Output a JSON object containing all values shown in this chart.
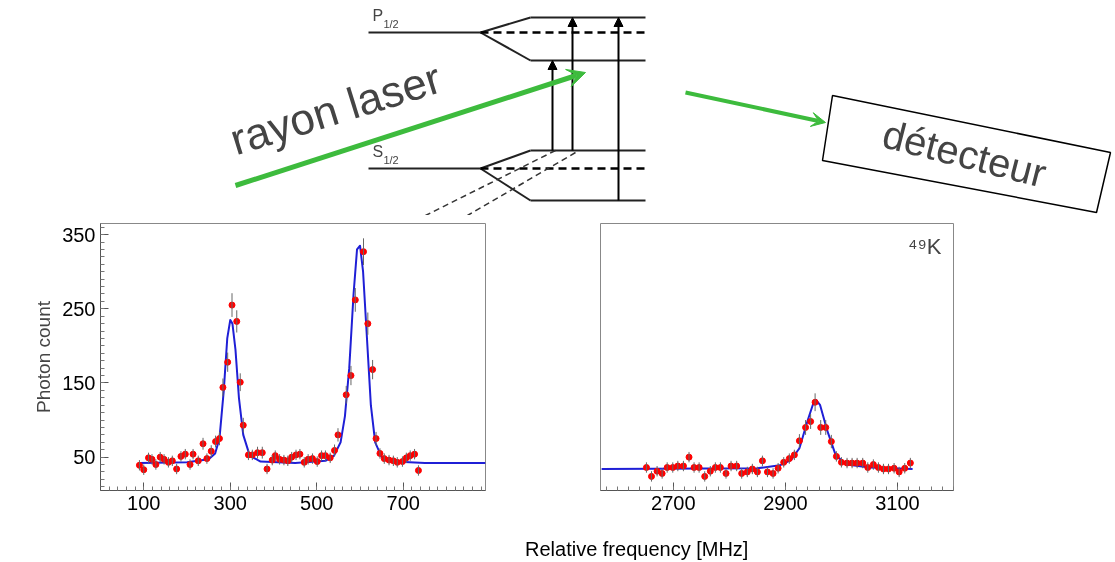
{
  "chart_data": [
    {
      "type": "scatter",
      "xlabel": "Relative frequency [MHz]",
      "ylabel": "Photon count",
      "xlim": [
        0,
        890
      ],
      "xticks": [
        100,
        300,
        500,
        700
      ],
      "ylim": [
        5,
        365
      ],
      "yticks": [
        50,
        150,
        250,
        350
      ],
      "annotations": [
        "rayon laser",
        "détecteur",
        "P$_{1/2}$",
        "S$_{1/2}$"
      ],
      "series": [
        {
          "marker": "circle",
          "color": "#ff0000",
          "x": [
            90,
            100,
            111,
            119,
            128,
            138,
            147,
            157,
            166,
            176,
            186,
            196,
            207,
            214,
            226,
            237,
            246,
            256,
            266,
            275,
            283,
            294,
            304,
            315,
            323,
            330,
            342,
            351,
            363,
            374,
            385,
            397,
            404,
            414,
            424,
            433,
            442,
            452,
            461,
            471,
            480,
            490,
            501,
            511,
            520,
            531,
            541,
            549,
            568,
            579,
            589,
            608,
            618,
            629,
            637,
            646,
            656,
            667,
            677,
            686,
            698,
            707,
            716,
            726,
            735
          ],
          "values": [
            39,
            33,
            49,
            47,
            40,
            50,
            47,
            43,
            45,
            34,
            51,
            54,
            40,
            54,
            45,
            68,
            48,
            58,
            71,
            75,
            144,
            178,
            255,
            233,
            151,
            93,
            53,
            53,
            56,
            56,
            34,
            46,
            52,
            47,
            46,
            45,
            50,
            53,
            54,
            43,
            47,
            48,
            44,
            52,
            52,
            49,
            59,
            80,
            134,
            160,
            262,
            327,
            230,
            168,
            75,
            55,
            48,
            46,
            45,
            43,
            44,
            49,
            52,
            54,
            32
          ],
          "errors": [
            7,
            7,
            7,
            7,
            7,
            7,
            7,
            7,
            7,
            7,
            7,
            7,
            7,
            7,
            7,
            8,
            7,
            8,
            8,
            9,
            12,
            13,
            16,
            15,
            12,
            10,
            7,
            7,
            8,
            8,
            7,
            7,
            7,
            7,
            7,
            7,
            7,
            7,
            7,
            7,
            7,
            7,
            7,
            7,
            7,
            7,
            8,
            9,
            12,
            13,
            16,
            18,
            15,
            13,
            9,
            7,
            7,
            7,
            7,
            7,
            7,
            7,
            7,
            7,
            7
          ]
        },
        {
          "type": "line",
          "color": "#1f1fd6",
          "x": [
            90,
            200,
            250,
            265,
            275,
            285,
            293,
            300,
            305,
            312,
            320,
            330,
            345,
            370,
            450,
            520,
            540,
            555,
            565,
            575,
            585,
            593,
            600,
            607,
            615,
            625,
            635,
            650,
            680,
            750,
            890
          ],
          "values": [
            42,
            43,
            47,
            55,
            75,
            140,
            210,
            235,
            230,
            195,
            130,
            80,
            52,
            44,
            42,
            45,
            52,
            70,
            105,
            170,
            270,
            330,
            335,
            300,
            220,
            120,
            70,
            50,
            44,
            42,
            42
          ]
        }
      ]
    },
    {
      "type": "scatter",
      "xlim": [
        2570,
        3200
      ],
      "xticks": [
        2700,
        2900,
        3100
      ],
      "ylim": [
        5,
        365
      ],
      "yticks": [
        50,
        150,
        250,
        350
      ],
      "tick_labels": "x",
      "annotations": [
        "⁴⁹K"
      ],
      "series": [
        {
          "marker": "circle",
          "color": "#ff0000",
          "x": [
            2652,
            2661,
            2671,
            2680,
            2689,
            2699,
            2708,
            2718,
            2728,
            2737,
            2746,
            2756,
            2766,
            2775,
            2784,
            2794,
            2803,
            2813,
            2822,
            2832,
            2841,
            2850,
            2859,
            2868,
            2878,
            2887,
            2897,
            2907,
            2916,
            2925,
            2936,
            2945,
            2953,
            2963,
            2972,
            2982,
            2991,
            3000,
            3010,
            3019,
            3028,
            3038,
            3047,
            3057,
            3066,
            3075,
            3084,
            3094,
            3103,
            3113,
            3123
          ],
          "values": [
            36,
            24,
            31,
            28,
            36,
            36,
            38,
            38,
            50,
            36,
            36,
            24,
            31,
            36,
            36,
            28,
            38,
            38,
            28,
            30,
            34,
            30,
            45,
            30,
            28,
            35,
            43,
            48,
            53,
            72,
            90,
            98,
            124,
            90,
            90,
            71,
            51,
            43,
            42,
            42,
            42,
            42,
            36,
            40,
            36,
            34,
            34,
            35,
            30,
            35,
            42
          ],
          "errors": [
            7,
            7,
            7,
            7,
            7,
            7,
            7,
            7,
            7,
            7,
            7,
            7,
            7,
            7,
            7,
            7,
            7,
            7,
            7,
            7,
            7,
            7,
            7,
            7,
            7,
            7,
            7,
            7,
            7,
            9,
            10,
            10,
            12,
            10,
            10,
            9,
            7,
            7,
            7,
            7,
            7,
            7,
            7,
            7,
            7,
            7,
            7,
            7,
            7,
            7,
            7
          ]
        },
        {
          "type": "line",
          "color": "#1f1fd6",
          "x": [
            2572,
            2850,
            2890,
            2910,
            2925,
            2940,
            2950,
            2955,
            2962,
            2975,
            2990,
            3010,
            3050,
            3127
          ],
          "values": [
            34,
            35,
            39,
            46,
            62,
            100,
            123,
            127,
            120,
            85,
            52,
            40,
            36,
            34
          ]
        }
      ]
    }
  ]
}
